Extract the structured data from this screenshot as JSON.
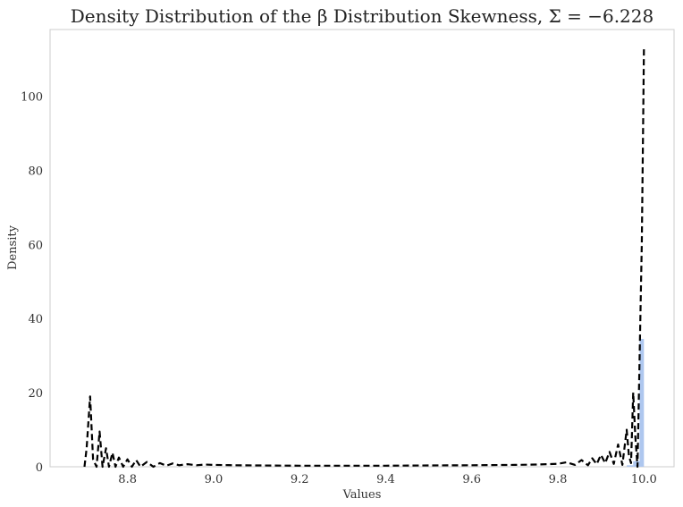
{
  "chart_data": {
    "type": "histogram_with_kde",
    "title": "Density Distribution of the β  Distribution Skewness, Σ = −6.228",
    "xlabel": "Values",
    "ylabel": "Density",
    "xlim": [
      8.62,
      10.07
    ],
    "ylim": [
      0,
      118
    ],
    "xticks": [
      8.8,
      9.0,
      9.2,
      9.4,
      9.6,
      9.8,
      10.0
    ],
    "xtick_labels": [
      "8.8",
      "9.0",
      "9.2",
      "9.4",
      "9.6",
      "9.8",
      "10.0"
    ],
    "yticks": [
      0,
      20,
      40,
      60,
      80,
      100
    ],
    "ytick_labels": [
      "0",
      "20",
      "40",
      "60",
      "80",
      "100"
    ],
    "grid": false,
    "histogram": {
      "color": "#aec7ef",
      "bins": [
        {
          "x0": 9.96,
          "x1": 9.975,
          "value": 0.4
        },
        {
          "x0": 9.975,
          "x1": 9.99,
          "value": 1.5
        },
        {
          "x0": 9.99,
          "x1": 10.0,
          "value": 34.5
        }
      ]
    },
    "kde": {
      "color": "#000000",
      "style": "dashed",
      "x": [
        8.7,
        8.705,
        8.713,
        8.72,
        8.728,
        8.735,
        8.742,
        8.75,
        8.757,
        8.765,
        8.772,
        8.78,
        8.79,
        8.8,
        8.81,
        8.82,
        8.83,
        8.845,
        8.86,
        8.875,
        8.89,
        8.905,
        8.92,
        8.94,
        8.96,
        8.98,
        9.0,
        9.05,
        9.1,
        9.2,
        9.3,
        9.4,
        9.5,
        9.6,
        9.7,
        9.75,
        9.8,
        9.82,
        9.84,
        9.855,
        9.87,
        9.88,
        9.89,
        9.9,
        9.91,
        9.92,
        9.93,
        9.94,
        9.95,
        9.96,
        9.965,
        9.97,
        9.975,
        9.98,
        9.985,
        9.99,
        9.995,
        9.998,
        10.0
      ],
      "y": [
        0.0,
        5.0,
        19.0,
        2.0,
        0.0,
        9.5,
        0.0,
        5.0,
        0.0,
        3.8,
        0.0,
        2.5,
        0.0,
        2.0,
        0.0,
        1.8,
        0.0,
        1.3,
        0.0,
        1.0,
        0.3,
        0.9,
        0.4,
        0.7,
        0.4,
        0.6,
        0.5,
        0.4,
        0.35,
        0.3,
        0.3,
        0.3,
        0.35,
        0.4,
        0.5,
        0.6,
        0.8,
        1.2,
        0.5,
        1.8,
        0.4,
        2.3,
        0.7,
        3.2,
        1.0,
        4.0,
        0.8,
        6.0,
        0.5,
        10.0,
        3.0,
        1.0,
        20.0,
        8.0,
        0.0,
        30.0,
        60.0,
        90.0,
        113.0
      ]
    }
  }
}
